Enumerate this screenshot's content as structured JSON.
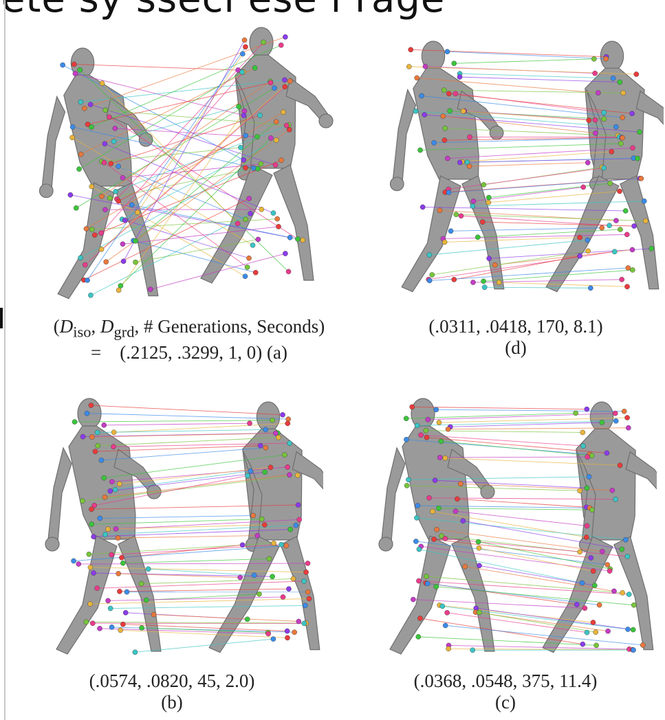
{
  "header_fragment": "ete sy   ssecl  ese  l  rage",
  "caption_legend_prefix": "(",
  "caption_legend_terms": [
    "D",
    "iso",
    "D",
    "grd",
    "# Generations, Seconds)"
  ],
  "panels": [
    {
      "id": "a",
      "values": "(.2125, .3299, 1, 0)",
      "label": "(a)",
      "prefix": "="
    },
    {
      "id": "d",
      "values": "(.0311, .0418, 170, 8.1)",
      "label": "(d)"
    },
    {
      "id": "b",
      "values": "(.0574, .0820, 45, 2.0)",
      "label": "(b)"
    },
    {
      "id": "c",
      "values": "(.0368, .0548, 375, 11.4)",
      "label": "(c)"
    }
  ],
  "colors": {
    "mesh": "#9a9a9a",
    "mesh_edge": "#6e6e6e",
    "lines": [
      "#e83c3c",
      "#3c8be8",
      "#3cc43c",
      "#c43cc4",
      "#e8b43c",
      "#3cc4c4",
      "#8b3ce8",
      "#e8783c",
      "#78c43c",
      "#e83c8b"
    ]
  }
}
